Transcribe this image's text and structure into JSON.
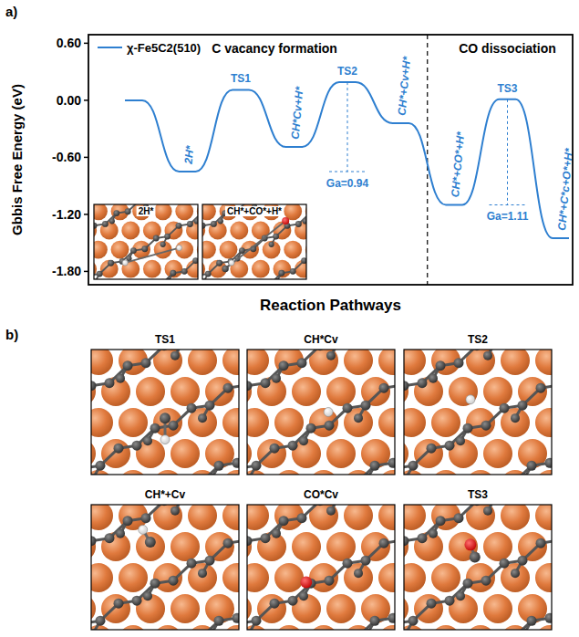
{
  "panel_labels": [
    "a)",
    "b)"
  ],
  "chart_data": {
    "type": "energy_profile",
    "ylabel": "Gbbis Free Energy (eV)",
    "xlabel": "Reaction Pathways",
    "ylim": [
      -1.94,
      0.69
    ],
    "yticks": [
      {
        "value": 0.6,
        "label": "0.60"
      },
      {
        "value": 0,
        "label": "0.00"
      },
      {
        "value": -0.6,
        "label": "-0.60"
      },
      {
        "value": -1.2,
        "label": "-1.20"
      },
      {
        "value": -1.8,
        "label": "-1.80"
      }
    ],
    "tick_labels": "y",
    "legend": "upper left",
    "barrier_prefix": "Ga=",
    "series": [
      {
        "name": "χ-Fe5C2(510)",
        "color": "#2e7fd0",
        "sections": [
          {
            "title": "C vacancy formation",
            "points": [
              {
                "label": null,
                "value": 0.0
              },
              {
                "label": "2H*",
                "value": -0.75
              },
              {
                "label": "TS1",
                "value": 0.11
              },
              {
                "label": "CH*Cv+H*",
                "value": -0.49
              },
              {
                "label": "TS2",
                "value": 0.19,
                "barrier": 0.94
              },
              {
                "label": "CH*+Cv+H*",
                "value": -0.24
              }
            ]
          },
          {
            "title": "CO dissociation",
            "points": [
              {
                "label": "CH*+CO*+H*",
                "value": -1.1
              },
              {
                "label": "TS3",
                "value": 0.01,
                "barrier": 1.11
              },
              {
                "label": "CH*+C*c+O*+H*",
                "value": -1.45
              }
            ]
          }
        ]
      }
    ],
    "insets": [
      "2H*",
      "CH*+CO*+H*"
    ]
  },
  "panel_b": {
    "structures": [
      "TS1",
      "CH*Cv",
      "TS2",
      "CH*+Cv",
      "CO*Cv",
      "TS3"
    ]
  }
}
